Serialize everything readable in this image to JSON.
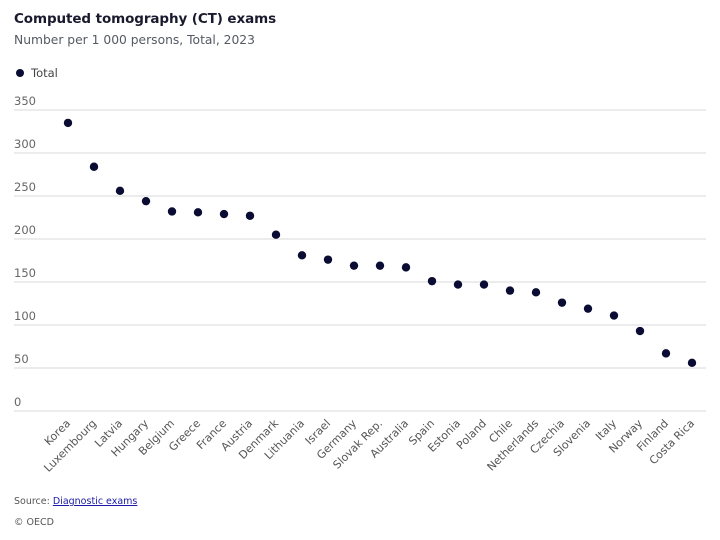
{
  "header": {
    "title": "Computed tomography (CT) exams",
    "subtitle": "Number per 1 000 persons, Total, 2023"
  },
  "legend": {
    "items": [
      {
        "label": "Total",
        "color": "#0b0c33"
      }
    ]
  },
  "footer": {
    "source_prefix": "Source: ",
    "source_link": "Diagnostic exams",
    "copyright": "© OECD"
  },
  "chart_data": {
    "type": "scatter",
    "title": "Computed tomography (CT) exams",
    "subtitle": "Number per 1 000 persons, Total, 2023",
    "xlabel": "",
    "ylabel": "",
    "ylim": [
      0,
      350
    ],
    "yticks": [
      0,
      50,
      100,
      150,
      200,
      250,
      300,
      350
    ],
    "grid": true,
    "legend_position": "top-left",
    "categories": [
      "Korea",
      "Luxembourg",
      "Latvia",
      "Hungary",
      "Belgium",
      "Greece",
      "France",
      "Austria",
      "Denmark",
      "Lithuania",
      "Israel",
      "Germany",
      "Slovak Rep.",
      "Australia",
      "Spain",
      "Estonia",
      "Poland",
      "Chile",
      "Netherlands",
      "Czechia",
      "Slovenia",
      "Italy",
      "Norway",
      "Finland",
      "Costa Rica"
    ],
    "series": [
      {
        "name": "Total",
        "color": "#0b0c33",
        "values": [
          335,
          284,
          256,
          244,
          232,
          231,
          229,
          227,
          205,
          181,
          176,
          169,
          169,
          167,
          151,
          147,
          147,
          140,
          138,
          126,
          119,
          111,
          93,
          67,
          56
        ]
      }
    ]
  }
}
